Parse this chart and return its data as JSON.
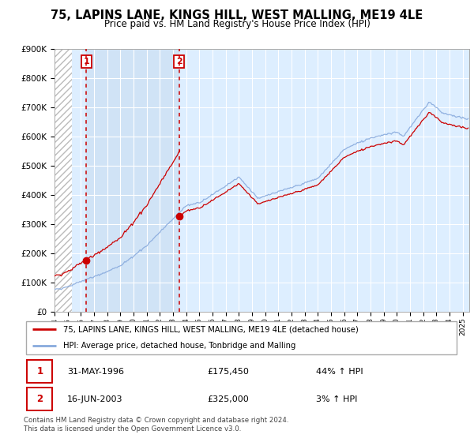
{
  "title": "75, LAPINS LANE, KINGS HILL, WEST MALLING, ME19 4LE",
  "subtitle": "Price paid vs. HM Land Registry's House Price Index (HPI)",
  "ylabel_ticks": [
    "£0",
    "£100K",
    "£200K",
    "£300K",
    "£400K",
    "£500K",
    "£600K",
    "£700K",
    "£800K",
    "£900K"
  ],
  "ytick_values": [
    0,
    100000,
    200000,
    300000,
    400000,
    500000,
    600000,
    700000,
    800000,
    900000
  ],
  "ylim": [
    0,
    900000
  ],
  "sale1_date_num": 1996.42,
  "sale1_price": 175450,
  "sale1_label": "1",
  "sale1_date_str": "31-MAY-1996",
  "sale1_price_str": "£175,450",
  "sale1_hpi": "44% ↑ HPI",
  "sale2_date_num": 2003.46,
  "sale2_price": 325000,
  "sale2_label": "2",
  "sale2_date_str": "16-JUN-2003",
  "sale2_price_str": "£325,000",
  "sale2_hpi": "3% ↑ HPI",
  "line1_color": "#cc0000",
  "line2_color": "#88aadd",
  "bg_color": "#ddeeff",
  "grid_color": "#ffffff",
  "xlim_start": 1994,
  "xlim_end": 2025.5,
  "legend1_label": "75, LAPINS LANE, KINGS HILL, WEST MALLING, ME19 4LE (detached house)",
  "legend2_label": "HPI: Average price, detached house, Tonbridge and Malling",
  "footer": "Contains HM Land Registry data © Crown copyright and database right 2024.\nThis data is licensed under the Open Government Licence v3.0."
}
